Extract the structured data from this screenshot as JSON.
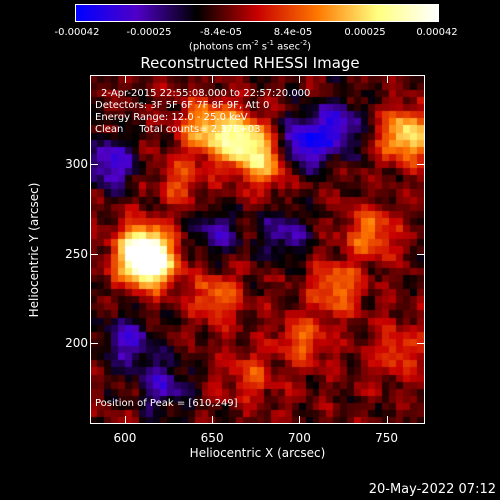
{
  "chart_data": {
    "type": "heatmap",
    "title": "Reconstructed RHESSI Image",
    "xlabel": "Heliocentric X (arcsec)",
    "ylabel": "Heliocentric Y (arcsec)",
    "xlim": [
      580,
      772
    ],
    "ylim": [
      155,
      350
    ],
    "xticks": [
      "600",
      "650",
      "700",
      "750"
    ],
    "yticks": [
      "200",
      "250",
      "300"
    ],
    "colorbar": {
      "range": [
        -0.00042,
        0.00042
      ],
      "ticks": [
        "-0.00042",
        "-0.00025",
        "-8.4e-05",
        "8.4e-05",
        "0.00025",
        "0.00042"
      ],
      "units": "(photons cm",
      "units_exp1": "-2",
      "units_mid": " s",
      "units_exp2": "-1",
      "units_mid2": " asec",
      "units_exp3": "-2",
      "units_end": ")",
      "colors": [
        "#0000ff",
        "#5000c8",
        "#000000",
        "#c80000",
        "#ff7800",
        "#ffff80",
        "#ffffff"
      ]
    },
    "annotations": {
      "time": "2-Apr-2015 22:55:08.000 to 22:57:20.000",
      "detectors": "Detectors: 3F 5F 6F 7F 8F 9F, Att 0",
      "energy": "Energy Range: 12.0 - 25.0 keV",
      "clean": "Clean     Total counts= 2.37E+03",
      "peak": "Position of Peak = [610,249]"
    },
    "hotspots": [
      {
        "x": 608,
        "y": 250,
        "value": 0.00042
      },
      {
        "x": 612,
        "y": 244,
        "value": 0.0004
      },
      {
        "x": 665,
        "y": 312,
        "value": 0.00038
      },
      {
        "x": 645,
        "y": 320,
        "value": 0.0003
      },
      {
        "x": 760,
        "y": 315,
        "value": 0.00036
      },
      {
        "x": 680,
        "y": 300,
        "value": 0.00025
      },
      {
        "x": 720,
        "y": 230,
        "value": 0.00022
      },
      {
        "x": 650,
        "y": 225,
        "value": 0.0002
      },
      {
        "x": 700,
        "y": 200,
        "value": 0.00018
      },
      {
        "x": 740,
        "y": 260,
        "value": 0.00022
      },
      {
        "x": 630,
        "y": 290,
        "value": 0.00015
      },
      {
        "x": 670,
        "y": 180,
        "value": 0.00014
      },
      {
        "x": 755,
        "y": 195,
        "value": 0.00016
      },
      {
        "x": 590,
        "y": 300,
        "value": -0.00025
      },
      {
        "x": 700,
        "y": 310,
        "value": -0.0003
      },
      {
        "x": 720,
        "y": 320,
        "value": -0.00025
      },
      {
        "x": 600,
        "y": 200,
        "value": -0.00022
      },
      {
        "x": 620,
        "y": 175,
        "value": -0.0002
      },
      {
        "x": 690,
        "y": 260,
        "value": -0.00018
      },
      {
        "x": 650,
        "y": 260,
        "value": -0.00016
      }
    ]
  },
  "footer": {
    "timestamp": "20-May-2022 07:12"
  }
}
